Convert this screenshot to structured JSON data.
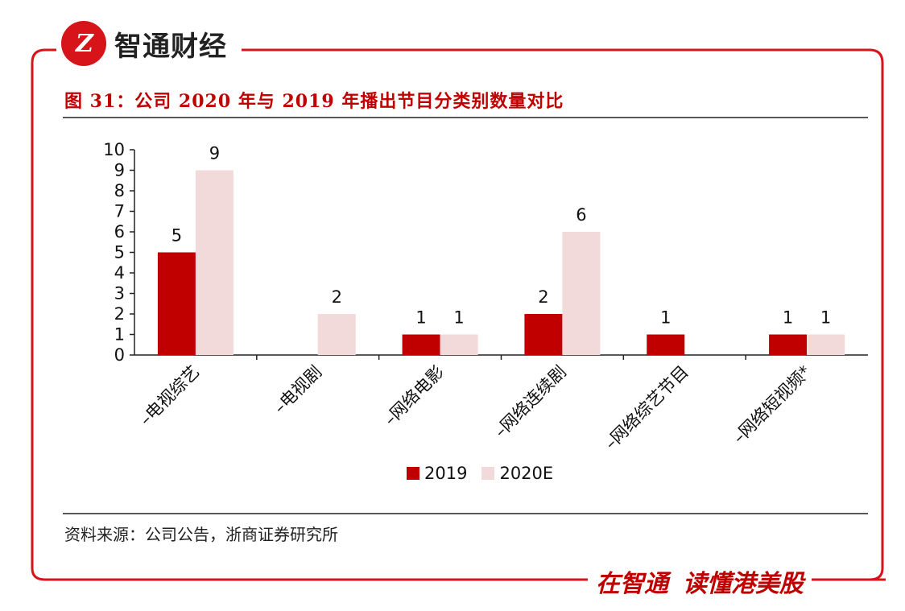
{
  "brand": {
    "logo_text": "Z",
    "name": "智通财经"
  },
  "figure_title": "图 31：公司 2020 年与 2019 年播出节目分类别数量对比",
  "source_note": "资料来源：公司公告，浙商证券研究所",
  "slogan": {
    "part1": "在智通",
    "part2": "读懂港美股"
  },
  "colors": {
    "accent": "#c00000",
    "frame": "#d7141a",
    "series_2019": "#c00000",
    "series_2020E": "#f3dada"
  },
  "chart_data": {
    "type": "bar",
    "title": "",
    "xlabel": "",
    "ylabel": "",
    "ylim": [
      0,
      10
    ],
    "yticks": [
      0,
      1,
      2,
      3,
      4,
      5,
      6,
      7,
      8,
      9,
      10
    ],
    "categories": [
      "–电视综艺",
      "–电视剧",
      "–网络电影",
      "–网络连续剧",
      "–网络综艺节目",
      "–网络短视频*"
    ],
    "series": [
      {
        "name": "2019",
        "color": "#c00000",
        "values": [
          5,
          null,
          1,
          2,
          1,
          1
        ]
      },
      {
        "name": "2020E",
        "color": "#f3dada",
        "values": [
          9,
          2,
          1,
          6,
          null,
          1
        ]
      }
    ],
    "legend_position": "bottom",
    "grid": false
  }
}
